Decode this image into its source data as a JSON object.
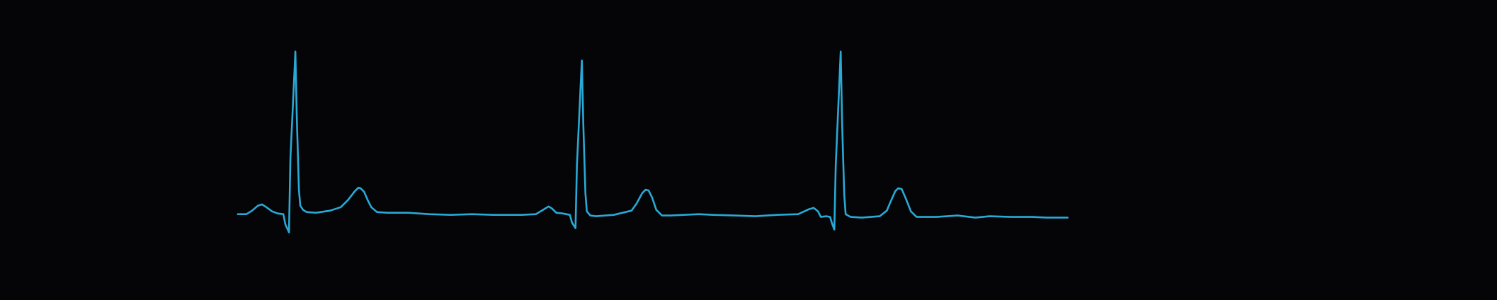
{
  "chart_data": {
    "type": "line",
    "title": "",
    "xlabel": "",
    "ylabel": "",
    "grid": false,
    "legend": "none",
    "axes_visible": false,
    "xlim": [
      0,
      1440
    ],
    "ylim": [
      -0.5,
      2.5
    ],
    "series": [
      {
        "color": "#29a9d6",
        "points": [
          [
            0,
            0.0
          ],
          [
            12,
            0.0
          ],
          [
            20,
            0.05
          ],
          [
            28,
            0.12
          ],
          [
            34,
            0.14
          ],
          [
            40,
            0.1
          ],
          [
            48,
            0.04
          ],
          [
            56,
            0.01
          ],
          [
            64,
            0.0
          ],
          [
            67,
            -0.15
          ],
          [
            72,
            -0.26
          ],
          [
            74,
            0.8
          ],
          [
            80,
            2.1
          ],
          [
            81,
            2.33
          ],
          [
            83,
            1.4
          ],
          [
            86,
            0.35
          ],
          [
            88,
            0.12
          ],
          [
            92,
            0.06
          ],
          [
            97,
            0.03
          ],
          [
            110,
            0.02
          ],
          [
            130,
            0.05
          ],
          [
            145,
            0.1
          ],
          [
            155,
            0.2
          ],
          [
            165,
            0.33
          ],
          [
            170,
            0.38
          ],
          [
            173,
            0.37
          ],
          [
            178,
            0.32
          ],
          [
            183,
            0.2
          ],
          [
            188,
            0.1
          ],
          [
            196,
            0.03
          ],
          [
            210,
            0.02
          ],
          [
            240,
            0.02
          ],
          [
            270,
            0.0
          ],
          [
            300,
            -0.01
          ],
          [
            330,
            0.0
          ],
          [
            360,
            -0.01
          ],
          [
            400,
            -0.01
          ],
          [
            420,
            0.0
          ],
          [
            430,
            0.06
          ],
          [
            438,
            0.11
          ],
          [
            443,
            0.08
          ],
          [
            449,
            0.02
          ],
          [
            458,
            0.01
          ],
          [
            468,
            -0.01
          ],
          [
            471,
            -0.12
          ],
          [
            476,
            -0.2
          ],
          [
            478,
            0.7
          ],
          [
            484,
            2.0
          ],
          [
            485,
            2.2
          ],
          [
            487,
            1.3
          ],
          [
            490,
            0.3
          ],
          [
            492,
            0.04
          ],
          [
            497,
            -0.02
          ],
          [
            505,
            -0.03
          ],
          [
            530,
            -0.01
          ],
          [
            555,
            0.05
          ],
          [
            562,
            0.15
          ],
          [
            570,
            0.3
          ],
          [
            575,
            0.35
          ],
          [
            579,
            0.34
          ],
          [
            584,
            0.24
          ],
          [
            590,
            0.06
          ],
          [
            598,
            -0.02
          ],
          [
            610,
            -0.02
          ],
          [
            650,
            0.0
          ],
          [
            670,
            -0.01
          ],
          [
            700,
            -0.02
          ],
          [
            730,
            -0.03
          ],
          [
            760,
            -0.01
          ],
          [
            790,
            0.0
          ],
          [
            805,
            0.07
          ],
          [
            812,
            0.09
          ],
          [
            818,
            0.04
          ],
          [
            822,
            -0.04
          ],
          [
            830,
            -0.03
          ],
          [
            835,
            -0.04
          ],
          [
            838,
            -0.14
          ],
          [
            841,
            -0.22
          ],
          [
            843,
            0.7
          ],
          [
            849,
            2.1
          ],
          [
            850,
            2.33
          ],
          [
            852,
            1.3
          ],
          [
            855,
            0.28
          ],
          [
            857,
            0.0
          ],
          [
            864,
            -0.04
          ],
          [
            880,
            -0.05
          ],
          [
            905,
            -0.03
          ],
          [
            915,
            0.05
          ],
          [
            920,
            0.17
          ],
          [
            927,
            0.33
          ],
          [
            931,
            0.37
          ],
          [
            936,
            0.36
          ],
          [
            942,
            0.22
          ],
          [
            949,
            0.04
          ],
          [
            957,
            -0.04
          ],
          [
            985,
            -0.04
          ],
          [
            1015,
            -0.02
          ],
          [
            1040,
            -0.05
          ],
          [
            1060,
            -0.03
          ],
          [
            1090,
            -0.04
          ],
          [
            1120,
            -0.04
          ],
          [
            1140,
            -0.05
          ],
          [
            1170,
            -0.05
          ]
        ]
      }
    ]
  }
}
